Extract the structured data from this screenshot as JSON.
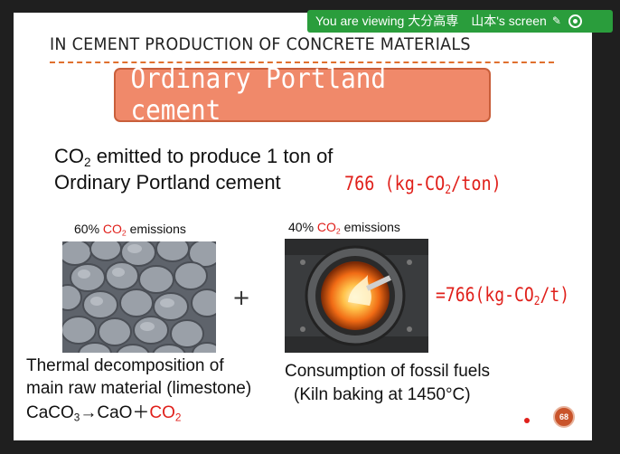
{
  "banner": {
    "text": "You are viewing 大分高専　山本's screen"
  },
  "slide": {
    "header": "IN CEMENT PRODUCTION OF CONCRETE MATERIALS",
    "title": "Ordinary Portland cement",
    "statement": {
      "line1_pre": "CO",
      "line1_sub": "2",
      "line1_post": " emitted to produce 1 ton of",
      "line2": "Ordinary Portland cement",
      "amount_pre": "766 (kg-CO",
      "amount_sub": "2",
      "amount_post": "/ton)"
    },
    "left_panel": {
      "caption_pre": "60% ",
      "caption_co": "CO",
      "caption_sub": "2",
      "caption_post": " emissions",
      "desc_line1": "Thermal decomposition of",
      "desc_line2": "main raw material (limestone)",
      "formula_pre": "CaCO",
      "formula_sub": "3",
      "formula_mid": "→CaO＋",
      "formula_co": "CO",
      "formula_sub2": "2"
    },
    "operator": "+",
    "right_panel": {
      "caption_pre": "40% ",
      "caption_co": "CO",
      "caption_sub": "2",
      "caption_post": " emissions",
      "desc_line1": "Consumption of fossil fuels",
      "desc_line2": "(Kiln baking at 1450°C)"
    },
    "result": {
      "pre": "=766(kg-CO",
      "sub": "2",
      "post": "/t)"
    },
    "page_number": "68"
  },
  "colors": {
    "accent_red": "#e0201b",
    "title_box": "#f0896a",
    "banner_green": "#2a9d3c",
    "dash_orange": "#e0702e"
  }
}
